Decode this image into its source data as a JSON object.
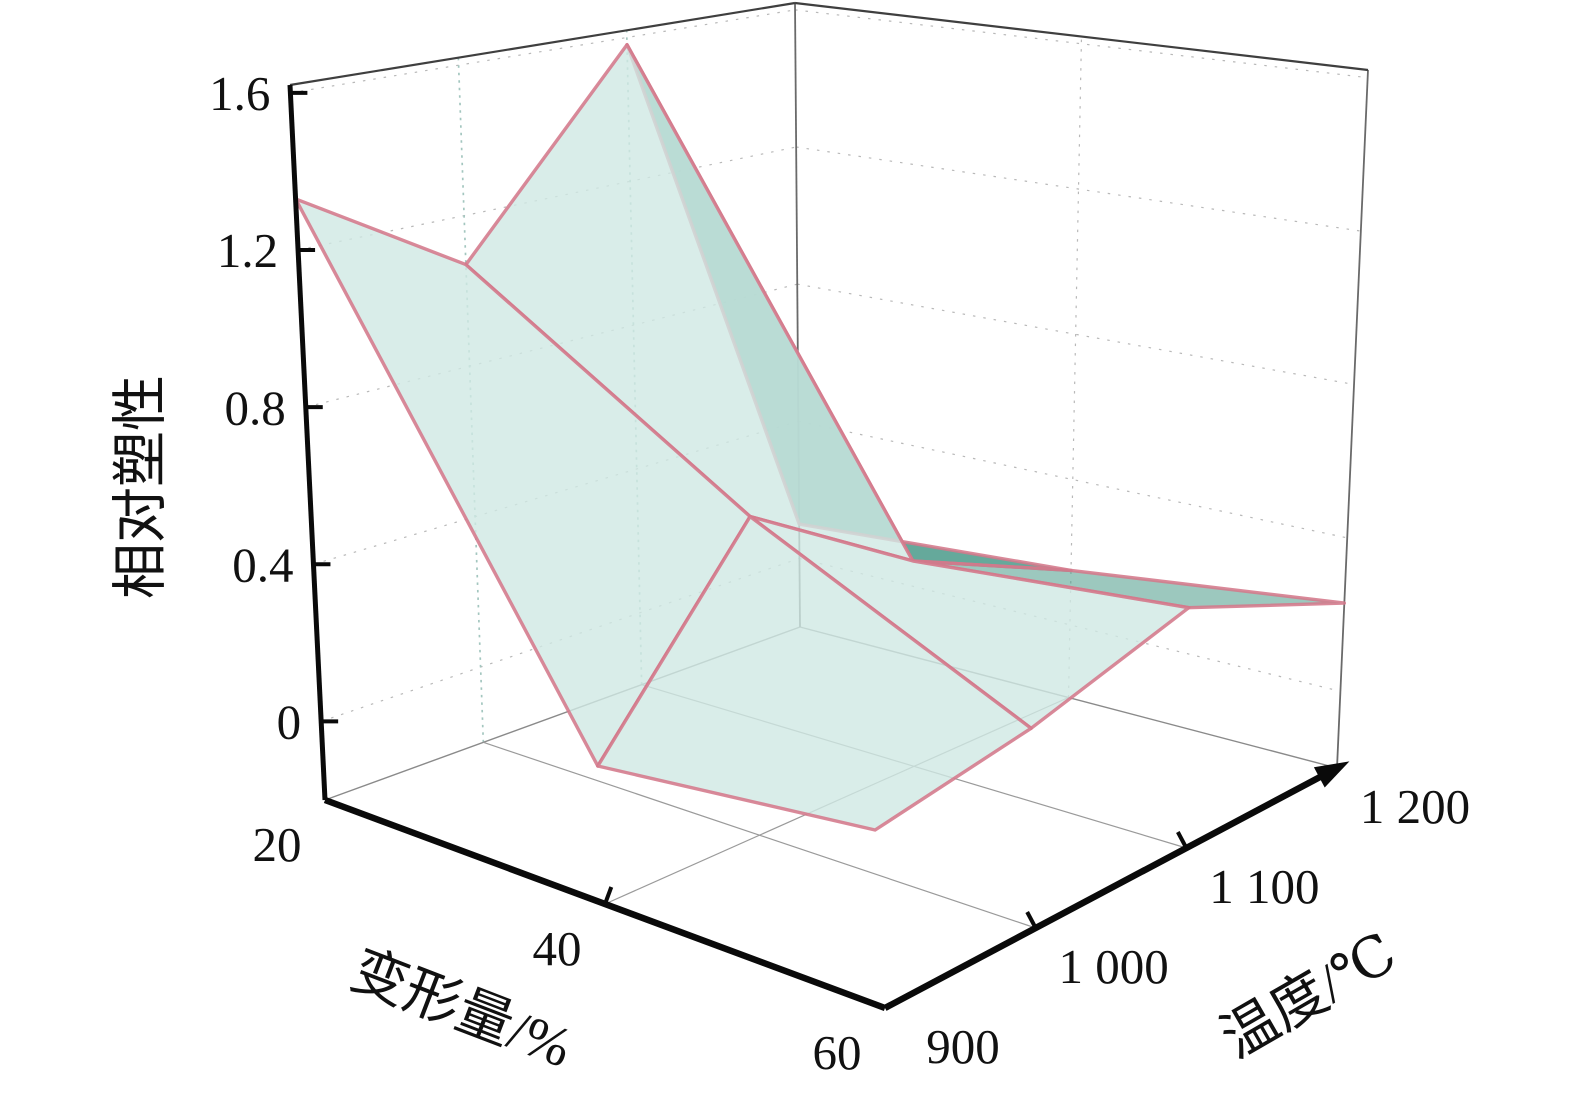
{
  "figure": {
    "background": "#ffffff"
  },
  "chart_data": {
    "type": "surface",
    "title": "",
    "x_label": "变形量/%",
    "y_label": "温度/℃",
    "z_label": "相对塑性",
    "x": [
      20,
      40,
      60
    ],
    "y": [
      900,
      1000,
      1100,
      1200
    ],
    "x_tick_labels": [
      "20",
      "40",
      "60"
    ],
    "y_tick_labels": [
      "900",
      "1 000",
      "1 100",
      "1 200"
    ],
    "z_tick_labels": [
      "0",
      "0.4",
      "0.8",
      "1.2",
      "1.6"
    ],
    "z_tick_values": [
      0,
      0.4,
      0.8,
      1.2,
      1.6
    ],
    "zlim": [
      -0.2,
      1.62
    ],
    "z_dims": [
      "x",
      "y"
    ],
    "z": [
      [
        1.33,
        1.07,
        1.58,
        0.1
      ],
      [
        0.15,
        0.63,
        0.35,
        0.15
      ],
      [
        0.25,
        0.31,
        0.42,
        0.23
      ]
    ],
    "legend": [],
    "grid": "on",
    "colors": {
      "surface_front": "#cfe9e3",
      "surface_back": "#4a9a89",
      "mesh_edge": "#d4798b",
      "axis": "#0a0a0a",
      "frame_top": "#3f3f3f",
      "frame_side": "#6a6a6a",
      "frame_floor": "#8a8a8a",
      "floor_grid": "#9a9a9a",
      "wall_grid": "#b8b8b8",
      "wall_dropline": "#a3c6bf",
      "text": "#111111"
    }
  }
}
